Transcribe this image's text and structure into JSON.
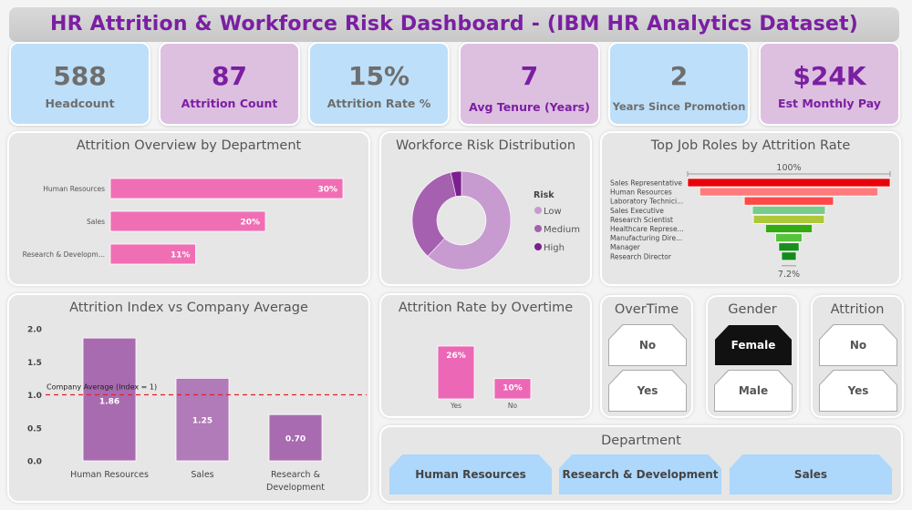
{
  "title": "HR Attrition & Workforce Risk Dashboard - (IBM HR Analytics Dataset)",
  "kpis": [
    {
      "value": "588",
      "label": "Headcount"
    },
    {
      "value": "87",
      "label": "Attrition Count"
    },
    {
      "value": "15%",
      "label": "Attrition Rate %"
    },
    {
      "value": "7",
      "label": "Avg Tenure (Years)"
    },
    {
      "value": "2",
      "label": "Years Since Promotion"
    },
    {
      "value": "$24K",
      "label": "Est Monthly Pay"
    }
  ],
  "colors": {
    "pink_bar": "#f06eb4",
    "index_bar": "#a86bb0",
    "index_bar_light": "#b17ab8",
    "avg_line": "#e0202a",
    "donut": [
      "#c79ad0",
      "#a560b0",
      "#7b1f8f"
    ]
  },
  "chart_data": [
    {
      "type": "bar",
      "orientation": "horizontal",
      "title": "Attrition Overview by Department",
      "categories": [
        "Human Resources",
        "Sales",
        "Research & Developm..."
      ],
      "values": [
        30,
        20,
        11
      ],
      "labels": [
        "30%",
        "20%",
        "11%"
      ],
      "xlim": [
        0,
        30
      ]
    },
    {
      "type": "pie",
      "title": "Workforce Risk Distribution",
      "legend_title": "Risk",
      "legend_position": "right",
      "categories": [
        "Low",
        "Medium",
        "High"
      ],
      "values": [
        62,
        34.5,
        3.5
      ],
      "donut": true
    },
    {
      "type": "bar",
      "subtype": "funnel",
      "title": "Top Job Roles by Attrition Rate",
      "categories": [
        "Sales Representative",
        "Human Resources",
        "Laboratory Technici...",
        "Sales Executive",
        "Research Scientist",
        "Healthcare Represe...",
        "Manufacturing Dire...",
        "Manager",
        "Research Director"
      ],
      "values": [
        100,
        88,
        44,
        36,
        35,
        23,
        13,
        10,
        7.2
      ],
      "colors": [
        "#e8000b",
        "#ff7a7a",
        "#ff4747",
        "#77cc8c",
        "#adc939",
        "#33aa11",
        "#55c43a",
        "#1a8f1f",
        "#148c1c"
      ],
      "top_label": "100%",
      "bottom_label": "7.2%"
    },
    {
      "type": "bar",
      "title": "Attrition Index vs Company Average",
      "categories": [
        "Human Resources",
        "Sales",
        "Research & Development"
      ],
      "values": [
        1.86,
        1.25,
        0.7
      ],
      "labels": [
        "1.86",
        "1.25",
        "0.70"
      ],
      "ylim": [
        0,
        2
      ],
      "yticks": [
        "0.0",
        "0.5",
        "1.0",
        "1.5",
        "2.0"
      ],
      "reference_line": {
        "value": 1,
        "label": "Company Average (Index = 1)"
      }
    },
    {
      "type": "bar",
      "title": "Attrition Rate by Overtime",
      "categories": [
        "Yes",
        "No"
      ],
      "values": [
        26,
        10
      ],
      "labels": [
        "26%",
        "10%"
      ]
    }
  ],
  "slicers": {
    "overtime": {
      "title": "OverTime",
      "options": [
        "No",
        "Yes"
      ],
      "selected": null
    },
    "gender": {
      "title": "Gender",
      "options": [
        "Female",
        "Male"
      ],
      "selected": "Female"
    },
    "attrition": {
      "title": "Attrition",
      "options": [
        "No",
        "Yes"
      ],
      "selected": null
    },
    "department": {
      "title": "Department",
      "options": [
        "Human Resources",
        "Research & Development",
        "Sales"
      ]
    }
  }
}
